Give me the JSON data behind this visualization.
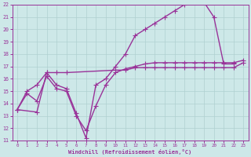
{
  "title": "",
  "xlabel": "Windchill (Refroidissement éolien,°C)",
  "xlim": [
    -0.5,
    23.5
  ],
  "ylim": [
    11,
    22
  ],
  "xticks": [
    0,
    1,
    2,
    3,
    4,
    5,
    6,
    7,
    8,
    9,
    10,
    11,
    12,
    13,
    14,
    15,
    16,
    17,
    18,
    19,
    20,
    21,
    22,
    23
  ],
  "yticks": [
    11,
    12,
    13,
    14,
    15,
    16,
    17,
    18,
    19,
    20,
    21,
    22
  ],
  "bg_color": "#cde8e8",
  "grid_color": "#b0d0d0",
  "line_color": "#993399",
  "line_width": 1.0,
  "marker": "+",
  "marker_size": 4,
  "lines": [
    {
      "x": [
        0,
        1,
        2,
        3,
        4,
        5,
        6,
        7,
        8,
        9,
        10,
        11,
        12,
        13,
        14,
        15,
        16,
        17,
        18,
        19,
        20,
        21,
        22,
        23
      ],
      "y": [
        13.5,
        14.8,
        14.2,
        16.2,
        15.2,
        15.0,
        13.0,
        11.8,
        13.8,
        15.5,
        16.5,
        16.8,
        17.0,
        17.2,
        17.3,
        17.3,
        17.3,
        17.3,
        17.3,
        17.3,
        17.3,
        17.3,
        17.3,
        17.5
      ]
    },
    {
      "x": [
        0,
        2,
        3,
        4,
        5,
        6,
        7,
        8,
        9,
        10,
        11,
        12,
        13,
        14,
        15,
        16,
        17,
        18,
        19,
        20,
        21,
        22
      ],
      "y": [
        13.5,
        13.3,
        16.5,
        15.5,
        15.2,
        13.2,
        11.2,
        15.5,
        16.0,
        17.0,
        18.0,
        19.5,
        20.0,
        20.5,
        21.0,
        21.5,
        22.0,
        22.2,
        22.2,
        21.0,
        17.2,
        17.2
      ]
    },
    {
      "x": [
        0,
        1,
        2,
        3,
        4,
        5,
        10,
        11,
        12,
        13,
        14,
        15,
        16,
        17,
        18,
        19,
        20,
        21,
        22,
        23
      ],
      "y": [
        13.5,
        15.0,
        15.5,
        16.5,
        16.5,
        16.5,
        16.7,
        16.7,
        16.9,
        16.9,
        16.9,
        16.9,
        16.9,
        16.9,
        16.9,
        16.9,
        16.9,
        16.9,
        16.9,
        17.3
      ]
    }
  ]
}
